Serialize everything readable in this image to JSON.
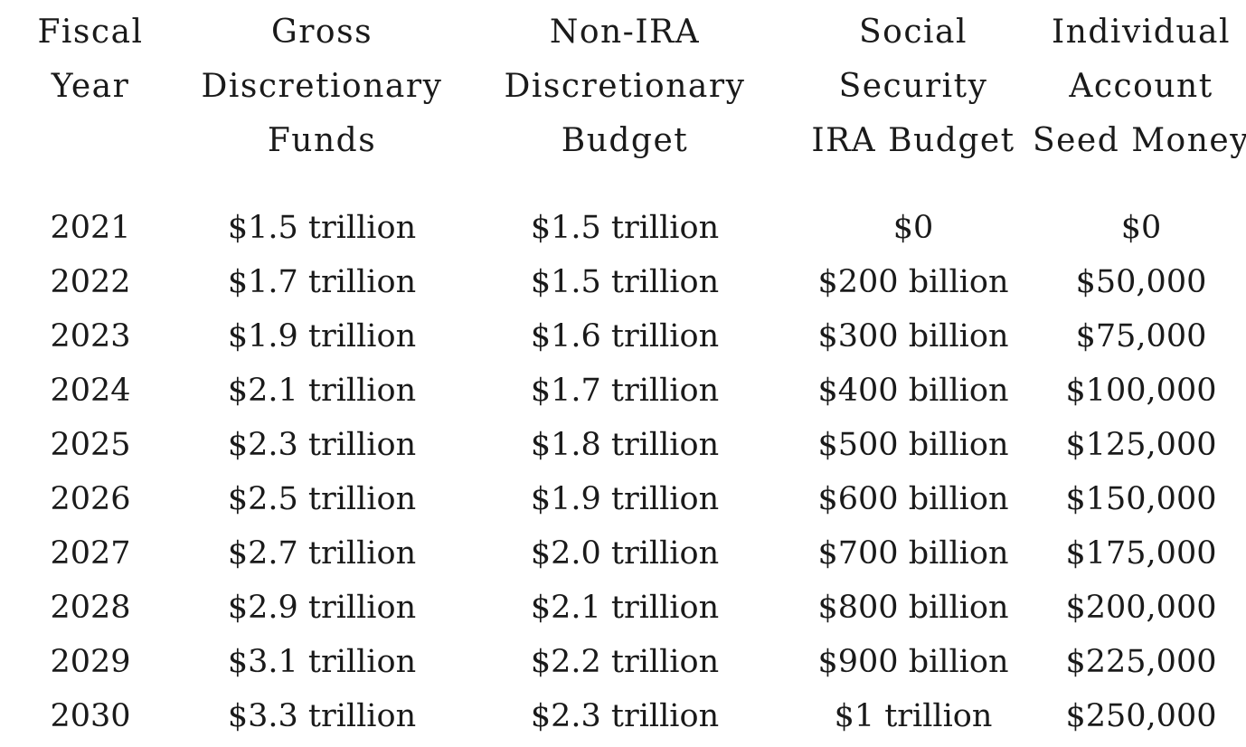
{
  "table": {
    "headers": [
      [
        "Fiscal",
        "Year"
      ],
      [
        "Gross",
        "Discretionary",
        "Funds"
      ],
      [
        "Non-IRA",
        "Discretionary",
        "Budget"
      ],
      [
        "Social",
        "Security",
        "IRA Budget"
      ],
      [
        "Individual",
        "Account",
        "Seed Money"
      ]
    ],
    "rows": [
      [
        "2021",
        "$1.5 trillion",
        "$1.5 trillion",
        "$0",
        "$0"
      ],
      [
        "2022",
        "$1.7 trillion",
        "$1.5 trillion",
        "$200 billion",
        "$50,000"
      ],
      [
        "2023",
        "$1.9 trillion",
        "$1.6 trillion",
        "$300 billion",
        "$75,000"
      ],
      [
        "2024",
        "$2.1 trillion",
        "$1.7 trillion",
        "$400 billion",
        "$100,000"
      ],
      [
        "2025",
        "$2.3 trillion",
        "$1.8 trillion",
        "$500 billion",
        "$125,000"
      ],
      [
        "2026",
        "$2.5 trillion",
        "$1.9 trillion",
        "$600 billion",
        "$150,000"
      ],
      [
        "2027",
        "$2.7 trillion",
        "$2.0 trillion",
        "$700 billion",
        "$175,000"
      ],
      [
        "2028",
        "$2.9 trillion",
        "$2.1 trillion",
        "$800 billion",
        "$200,000"
      ],
      [
        "2029",
        "$3.1 trillion",
        "$2.2 trillion",
        "$900 billion",
        "$225,000"
      ],
      [
        "2030",
        "$3.3 trillion",
        "$2.3 trillion",
        "$1 trillion",
        "$250,000"
      ]
    ]
  }
}
